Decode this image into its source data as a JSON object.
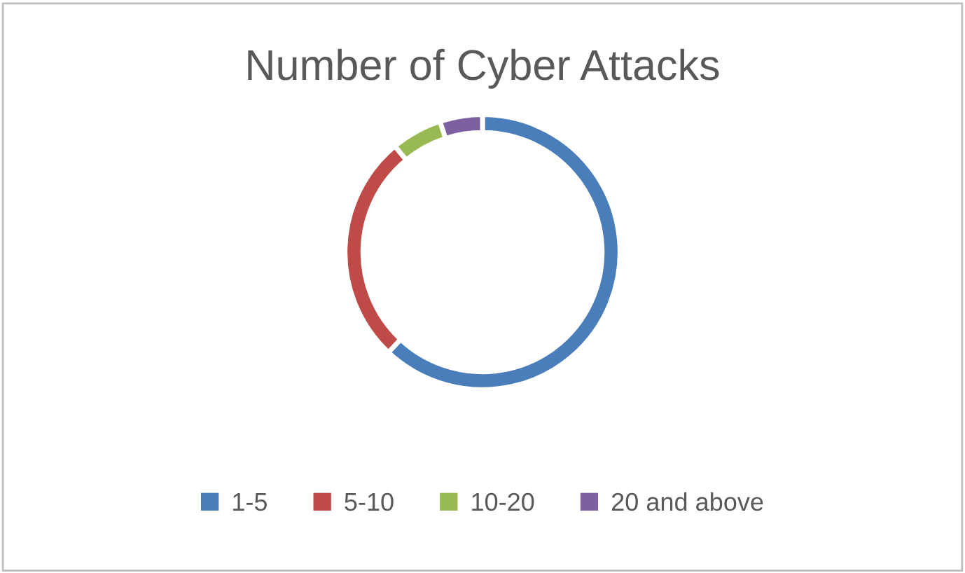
{
  "chart_data": {
    "type": "donut",
    "title": "Number of Cyber Attacks",
    "categories": [
      "1-5",
      "5-10",
      "10-20",
      "20 and above"
    ],
    "values": [
      62,
      27,
      6,
      5
    ],
    "colors": [
      "#4a7ebb",
      "#be4b48",
      "#98b954",
      "#7d60a0"
    ],
    "legend": "bottom"
  }
}
